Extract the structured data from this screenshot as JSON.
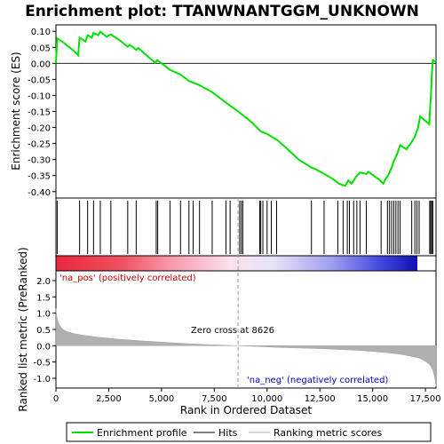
{
  "chart_data": {
    "type": "line",
    "title": "Enrichment plot: TTANWNANTGGM_UNKNOWN",
    "es_panel": {
      "ylabel": "Enrichment score (ES)",
      "ylim": [
        -0.42,
        0.12
      ],
      "yticks": [
        0.1,
        0.05,
        0.0,
        -0.05,
        -0.1,
        -0.15,
        -0.2,
        -0.25,
        -0.3,
        -0.35,
        -0.4
      ],
      "ytick_labels": [
        "0.10",
        "0.05",
        "0.00",
        "-0.05",
        "-0.10",
        "-0.15",
        "-0.20",
        "-0.25",
        "-0.30",
        "-0.35",
        "-0.40"
      ],
      "series_color": "#00e000",
      "profile": [
        [
          0,
          0.0
        ],
        [
          60,
          0.078
        ],
        [
          300,
          0.068
        ],
        [
          600,
          0.052
        ],
        [
          900,
          0.036
        ],
        [
          1050,
          0.025
        ],
        [
          1120,
          0.08
        ],
        [
          1400,
          0.068
        ],
        [
          1500,
          0.088
        ],
        [
          1700,
          0.08
        ],
        [
          1780,
          0.095
        ],
        [
          2000,
          0.088
        ],
        [
          2100,
          0.099
        ],
        [
          2400,
          0.083
        ],
        [
          2600,
          0.09
        ],
        [
          3000,
          0.073
        ],
        [
          3400,
          0.052
        ],
        [
          3500,
          0.058
        ],
        [
          3800,
          0.042
        ],
        [
          3900,
          0.048
        ],
        [
          4200,
          0.03
        ],
        [
          4700,
          0.002
        ],
        [
          4800,
          0.01
        ],
        [
          5000,
          0.0
        ],
        [
          5400,
          -0.02
        ],
        [
          5900,
          -0.035
        ],
        [
          6300,
          -0.055
        ],
        [
          6800,
          -0.068
        ],
        [
          7400,
          -0.09
        ],
        [
          8000,
          -0.12
        ],
        [
          8626,
          -0.15
        ],
        [
          9200,
          -0.18
        ],
        [
          9700,
          -0.212
        ],
        [
          10000,
          -0.22
        ],
        [
          10500,
          -0.24
        ],
        [
          11000,
          -0.27
        ],
        [
          11500,
          -0.3
        ],
        [
          12100,
          -0.325
        ],
        [
          12300,
          -0.33
        ],
        [
          12700,
          -0.345
        ],
        [
          13100,
          -0.36
        ],
        [
          13400,
          -0.375
        ],
        [
          13700,
          -0.382
        ],
        [
          13850,
          -0.365
        ],
        [
          14000,
          -0.375
        ],
        [
          14200,
          -0.355
        ],
        [
          14400,
          -0.34
        ],
        [
          14700,
          -0.345
        ],
        [
          14800,
          -0.338
        ],
        [
          15300,
          -0.362
        ],
        [
          15500,
          -0.375
        ],
        [
          15600,
          -0.362
        ],
        [
          15750,
          -0.348
        ],
        [
          15900,
          -0.325
        ],
        [
          16000,
          -0.305
        ],
        [
          16150,
          -0.285
        ],
        [
          16300,
          -0.255
        ],
        [
          16600,
          -0.268
        ],
        [
          16800,
          -0.25
        ],
        [
          17000,
          -0.228
        ],
        [
          17150,
          -0.2
        ],
        [
          17250,
          -0.165
        ],
        [
          17500,
          -0.18
        ],
        [
          17680,
          -0.19
        ],
        [
          17720,
          -0.14
        ],
        [
          17760,
          -0.1
        ],
        [
          17800,
          -0.04
        ],
        [
          17850,
          0.01
        ],
        [
          18000,
          0.005
        ]
      ]
    },
    "hits": [
      60,
      1120,
      1500,
      1780,
      2100,
      2600,
      3400,
      3800,
      4750,
      4820,
      5400,
      5900,
      6300,
      6500,
      6800,
      7400,
      8050,
      8250,
      8700,
      8780,
      8850,
      9650,
      9700,
      9800,
      10000,
      10200,
      10450,
      12100,
      12700,
      13350,
      13600,
      13800,
      13900,
      14100,
      14250,
      14400,
      14700,
      15400,
      15700,
      15800,
      15900,
      16000,
      16100,
      16200,
      16300,
      16850,
      17000,
      17100,
      17200,
      17700,
      17750,
      17800,
      17850
    ],
    "metric_panel": {
      "ylabel": "Ranked list metric (PreRanked)",
      "ylim": [
        -1.3,
        2.3
      ],
      "yticks": [
        2.0,
        1.5,
        1.0,
        0.5,
        0.0,
        -0.5,
        -1.0
      ],
      "ytick_labels": [
        "2.0",
        "1.5",
        "1.0",
        "0.5",
        "0.0",
        "-0.5",
        "-1.0"
      ],
      "curve": [
        [
          0,
          1.15
        ],
        [
          50,
          0.85
        ],
        [
          150,
          0.65
        ],
        [
          300,
          0.52
        ],
        [
          500,
          0.44
        ],
        [
          800,
          0.38
        ],
        [
          1200,
          0.33
        ],
        [
          2000,
          0.26
        ],
        [
          3000,
          0.2
        ],
        [
          4000,
          0.15
        ],
        [
          5000,
          0.11
        ],
        [
          6000,
          0.07
        ],
        [
          7000,
          0.04
        ],
        [
          8000,
          0.015
        ],
        [
          8626,
          0.0
        ],
        [
          9500,
          -0.02
        ],
        [
          10500,
          -0.05
        ],
        [
          11500,
          -0.07
        ],
        [
          12500,
          -0.09
        ],
        [
          13500,
          -0.12
        ],
        [
          14500,
          -0.15
        ],
        [
          15500,
          -0.2
        ],
        [
          16300,
          -0.26
        ],
        [
          16800,
          -0.32
        ],
        [
          17200,
          -0.38
        ],
        [
          17500,
          -0.48
        ],
        [
          17700,
          -0.58
        ],
        [
          17850,
          -0.75
        ],
        [
          17950,
          -1.0
        ],
        [
          18000,
          -1.25
        ]
      ],
      "zero_cross_label": "Zero cross at 8626",
      "zero_cross": 8626,
      "pos_label": "'na_pos' (positively correlated)",
      "neg_label": "'na_neg' (negatively correlated)"
    },
    "xlabel": "Rank in Ordered Dataset",
    "xlim": [
      0,
      18000
    ],
    "xticks": [
      0,
      2500,
      5000,
      7500,
      10000,
      12500,
      15000,
      17500
    ],
    "xtick_labels": [
      "0",
      "2,500",
      "5,000",
      "7,500",
      "10,000",
      "12,500",
      "15,000",
      "17,500"
    ],
    "legend": {
      "placement": "bottom",
      "entries": [
        {
          "label": "Enrichment profile",
          "color": "#00e000"
        },
        {
          "label": "Hits",
          "color": "#000000"
        },
        {
          "label": "Ranking metric scores",
          "color": "#b0b0b0"
        }
      ]
    }
  }
}
